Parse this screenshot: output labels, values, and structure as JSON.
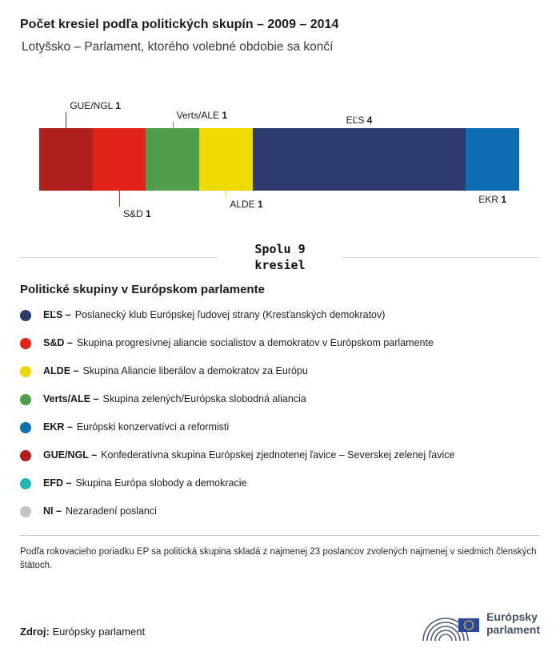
{
  "header": {
    "title": "Počet kresiel podľa politických skupín – 2009 – 2014",
    "subtitle": "Lotyšsko – Parlament, ktorého volebné obdobie sa končí"
  },
  "chart_data": {
    "type": "bar",
    "orientation": "horizontal-stacked",
    "title": "Počet kresiel podľa politických skupín – 2009 – 2014",
    "categories": [
      "GUE/NGL",
      "S&D",
      "Verts/ALE",
      "ALDE",
      "EĽS",
      "EKR"
    ],
    "values": [
      1,
      1,
      1,
      1,
      4,
      1
    ],
    "total_seats": 9,
    "total_label_line1": "Spolu 9",
    "total_label_line2": "kresiel",
    "segments": [
      {
        "group": "GUE/NGL",
        "seats": 1,
        "color": "#b01e1e",
        "label": {
          "side": "top",
          "line": "tall"
        }
      },
      {
        "group": "S&D",
        "seats": 1,
        "color": "#e2231a",
        "label": {
          "side": "bottom",
          "line": "tall"
        }
      },
      {
        "group": "Verts/ALE",
        "seats": 1,
        "color": "#509e4c",
        "label": {
          "side": "top",
          "line": "short"
        }
      },
      {
        "group": "ALDE",
        "seats": 1,
        "color": "#eed900",
        "label": {
          "side": "bottom",
          "line": "short"
        }
      },
      {
        "group": "EĽS",
        "seats": 4,
        "color": "#2e3a6e",
        "label": {
          "side": "top",
          "line": "none"
        }
      },
      {
        "group": "EKR",
        "seats": 1,
        "color": "#0e6eb4",
        "label": {
          "side": "bottom",
          "line": "none"
        }
      }
    ]
  },
  "legend": {
    "heading": "Politické skupiny v Európskom parlamente",
    "items": [
      {
        "abbr": "EĽS",
        "desc": "Poslanecký klub Európskej ľudovej strany (Kresťanských demokratov)",
        "color": "#2e3a6e"
      },
      {
        "abbr": "S&D",
        "desc": "Skupina progresívnej aliancie socialistov a demokratov v Európskom parlamente",
        "color": "#e2231a"
      },
      {
        "abbr": "ALDE",
        "desc": "Skupina Aliancie liberálov a demokratov za Európu",
        "color": "#eed900"
      },
      {
        "abbr": "Verts/ALE",
        "desc": "Skupina zelených/Európska slobodná aliancia",
        "color": "#509e4c"
      },
      {
        "abbr": "EKR",
        "desc": "Európski konzervatívci a reformisti",
        "color": "#0e6eb4"
      },
      {
        "abbr": "GUE/NGL",
        "desc": "Konfederatívna skupina Európskej zjednotenej ľavice – Severskej zelenej ľavice",
        "color": "#b01e1e"
      },
      {
        "abbr": "EFD",
        "desc": "Skupina Európa slobody a demokracie",
        "color": "#24b6b4"
      },
      {
        "abbr": "NI",
        "desc": "Nezaradení poslanci",
        "color": "#c4c4c4"
      }
    ]
  },
  "footnote": "Podľa rokovacieho poriadku EP sa politická skupina skladá z najmenej 23 poslancov zvolených najmenej v siedmich členských štátoch.",
  "source": {
    "label": "Zdroj:",
    "text": "Európsky parlament",
    "logo_line1": "Európsky",
    "logo_line2": "parlament"
  }
}
